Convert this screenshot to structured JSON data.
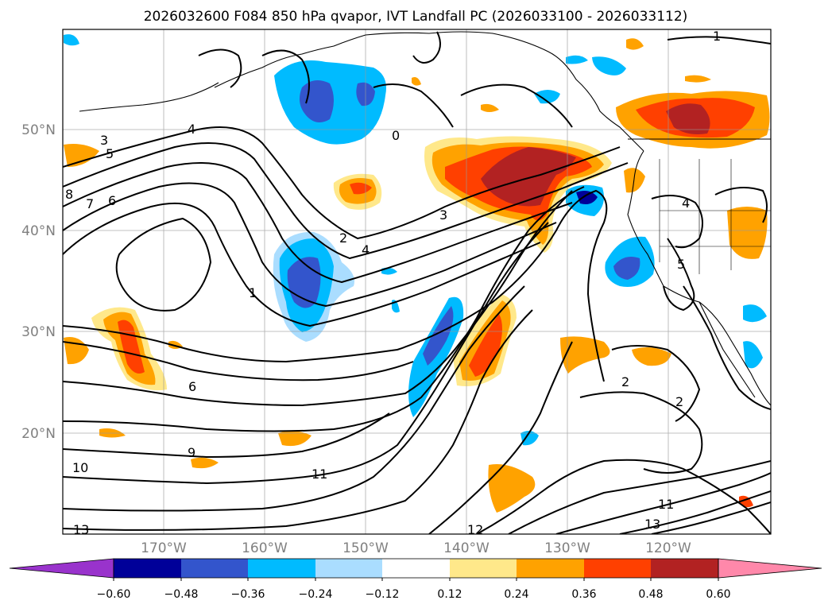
{
  "title": "2026032600 F084 850 hPa qvapor, IVT Landfall PC (2026033100 - 2026033112)",
  "lat_labels": [
    "50°N",
    "40°N",
    "30°N",
    "20°N"
  ],
  "lon_labels": [
    "170°W",
    "160°W",
    "150°W",
    "140°W",
    "130°W",
    "120°W"
  ],
  "contour_labels": [
    "1",
    "3",
    "4",
    "0",
    "3",
    "2",
    "4",
    "1",
    "6",
    "9",
    "10",
    "11",
    "12",
    "13",
    "2",
    "8",
    "7",
    "6",
    "5",
    "4",
    "5",
    "2",
    "13",
    "11"
  ],
  "colorbar": {
    "ticks": [
      "−0.60",
      "−0.48",
      "−0.36",
      "−0.24",
      "−0.12",
      "0.12",
      "0.24",
      "0.36",
      "0.48",
      "0.60"
    ],
    "colors": [
      "#9933cc",
      "#000099",
      "#3355cc",
      "#00bbff",
      "#aaddff",
      "#ffffff",
      "#ffe88a",
      "#ffa200",
      "#ff4000",
      "#b22222",
      "#ff88aa"
    ]
  },
  "palette": {
    "blue_light": "#aaddff",
    "blue": "#00bbff",
    "blue_mid": "#3355cc",
    "blue_dark": "#000099",
    "yellow": "#ffe88a",
    "orange": "#ffa200",
    "red": "#ff4000",
    "dark_red": "#b22222"
  }
}
